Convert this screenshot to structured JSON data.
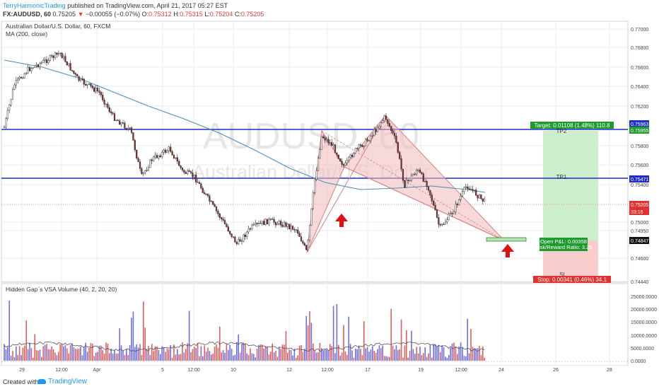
{
  "header": {
    "author": "TerryHarmonicTrading",
    "published_text": " published on TradingView.com, April 21, 2017 05:27 EST",
    "symbol": "FX:AUDUSD, 60",
    "last": "0.75205",
    "change_arrow": "▼",
    "change": "−0.00055 (−0.07%)",
    "o_label": "O:",
    "o_value": "0.75312",
    "h_label": "H:",
    "h_value": "0.75315",
    "l_label": "L:",
    "l_value": "0.75204",
    "c_label": "C:",
    "c_value": "0.75205"
  },
  "main_pane": {
    "title": "Australian Dollar/U.S. Dollar, 60, FXCM",
    "ma_label": "MA (200, close)",
    "watermark_symbol": "AUDUSD, 60",
    "watermark_name": "Australian Dollar/U.S. Dollar",
    "price_ticks": [
      "0.77000",
      "0.76800",
      "0.76600",
      "0.76400",
      "0.76200",
      "0.75800",
      "0.75600",
      "0.75400",
      "0.75000",
      "0.74950",
      "0.74600",
      "0.74440"
    ],
    "tags": {
      "tp2_price": "0.75963",
      "target_price": "0.75955",
      "tp1_price": "0.75471",
      "last_price": "0.75205",
      "countdown": "33:16",
      "entry_price": "0.74847"
    },
    "labels": {
      "tp2": "TP2",
      "tp1": "TP1",
      "sl": "SL",
      "target": "Target: 0.01108 (1.48%) 110.8",
      "open_pl": "Open P&L: 0.00358",
      "risk_reward": "Risk/Reward Ratio: 3.25",
      "stop": "Stop: 0.00341 (0.46%) 34.1"
    }
  },
  "volume_pane": {
    "title": "Hidden Gap`s VSA Volume (40, 2, 20, 20)",
    "ticks": [
      "25000.0000",
      "20000.0000",
      "15000.0000",
      "10000.0000",
      "5000.0000",
      "0.0000"
    ]
  },
  "time_axis": [
    "29",
    "12:00",
    "Apr",
    "5",
    "12:00",
    "10",
    "12",
    "12:00",
    "17",
    "19",
    "12:00",
    "24",
    "26",
    "28"
  ],
  "footer": {
    "created_with": "Created with",
    "brand": "TradingView"
  },
  "colors": {
    "up_candle": "#ffffff",
    "down_candle": "#8b2f2f",
    "ma": "#4a90b8",
    "level_line": "#1f2fbf",
    "target_zone": "#c8ecc8",
    "stop_zone": "#f7c6c6",
    "pattern_fill": "#f3b9b9",
    "arrow": "#e01010",
    "volume_up": "#6f6fe6",
    "volume_down": "#e06060"
  }
}
